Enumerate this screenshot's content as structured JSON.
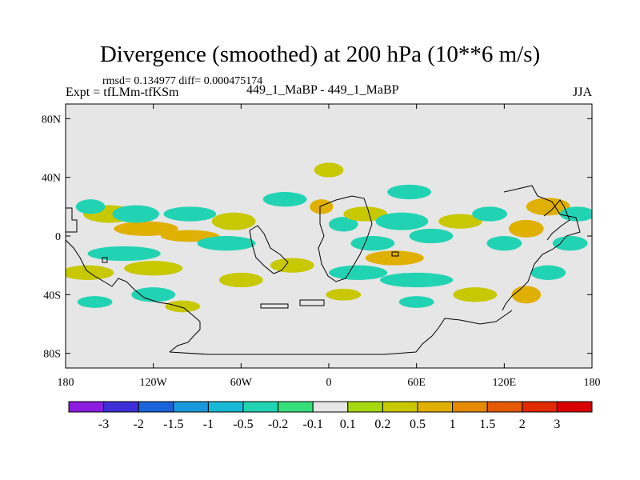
{
  "chart_data": {
    "type": "heatmap",
    "title": "Divergence (smoothed) at 200 hPa (10**6 m/s)",
    "stats_text": "rmsd= 0.134977 diff= 0.000475174",
    "left_label": "Expt = tfLMm-tfKSm",
    "center_label": "449_1_MaBP - 449_1_MaBP",
    "right_label": "JJA",
    "x_range": [
      -180,
      180
    ],
    "y_range": [
      -90,
      90
    ],
    "x_ticks": [
      {
        "value": -180,
        "label": "180"
      },
      {
        "value": -120,
        "label": "120W"
      },
      {
        "value": -60,
        "label": "60W"
      },
      {
        "value": 0,
        "label": "0"
      },
      {
        "value": 60,
        "label": "60E"
      },
      {
        "value": 120,
        "label": "120E"
      },
      {
        "value": 180,
        "label": "180"
      }
    ],
    "y_ticks": [
      {
        "value": 80,
        "label": "80N"
      },
      {
        "value": 40,
        "label": "40N"
      },
      {
        "value": 0,
        "label": "0"
      },
      {
        "value": -40,
        "label": "40S"
      },
      {
        "value": -80,
        "label": "80S"
      }
    ],
    "levels": [
      "-3",
      "-2",
      "-1.5",
      "-1",
      "-0.5",
      "-0.2",
      "-0.1",
      "0.1",
      "0.2",
      "0.5",
      "1",
      "1.5",
      "2",
      "3"
    ],
    "colors": [
      "#8c1de0",
      "#3f2fd6",
      "#1b63d9",
      "#1a98dc",
      "#18b9d6",
      "#22d3b3",
      "#36df7a",
      "#e6e6e6",
      "#a6d80f",
      "#c8c800",
      "#e0b000",
      "#e68a00",
      "#e35a00",
      "#e02a00",
      "#d80000"
    ],
    "background_color": "#e6e6e6",
    "anomalies": [
      {
        "lon": -150,
        "lat": 15,
        "dlon": 18,
        "dlat": 6,
        "value": 0.4
      },
      {
        "lon": -125,
        "lat": 5,
        "dlon": 22,
        "dlat": 5,
        "value": 0.5
      },
      {
        "lon": -95,
        "lat": 0,
        "dlon": 20,
        "dlat": 4,
        "value": 0.6
      },
      {
        "lon": -65,
        "lat": 10,
        "dlon": 15,
        "dlat": 6,
        "value": 0.4
      },
      {
        "lon": -163,
        "lat": 20,
        "dlon": 10,
        "dlat": 5,
        "value": -0.3
      },
      {
        "lon": -132,
        "lat": 15,
        "dlon": 16,
        "dlat": 6,
        "value": -0.4
      },
      {
        "lon": -95,
        "lat": 15,
        "dlon": 18,
        "dlat": 5,
        "value": -0.3
      },
      {
        "lon": -140,
        "lat": -12,
        "dlon": 25,
        "dlat": 5,
        "value": -0.4
      },
      {
        "lon": -70,
        "lat": -5,
        "dlon": 20,
        "dlat": 5,
        "value": -0.4
      },
      {
        "lon": -165,
        "lat": -25,
        "dlon": 18,
        "dlat": 5,
        "value": 0.4
      },
      {
        "lon": -120,
        "lat": -22,
        "dlon": 20,
        "dlat": 5,
        "value": 0.4
      },
      {
        "lon": -60,
        "lat": -30,
        "dlon": 15,
        "dlat": 5,
        "value": 0.4
      },
      {
        "lon": -160,
        "lat": -45,
        "dlon": 12,
        "dlat": 4,
        "value": -0.3
      },
      {
        "lon": -120,
        "lat": -40,
        "dlon": 15,
        "dlat": 5,
        "value": -0.3
      },
      {
        "lon": -100,
        "lat": -48,
        "dlon": 12,
        "dlat": 4,
        "value": 0.3
      },
      {
        "lon": -30,
        "lat": 25,
        "dlon": 15,
        "dlat": 5,
        "value": -0.3
      },
      {
        "lon": 0,
        "lat": 45,
        "dlon": 10,
        "dlat": 5,
        "value": 0.3
      },
      {
        "lon": -5,
        "lat": 20,
        "dlon": 8,
        "dlat": 5,
        "value": 0.5
      },
      {
        "lon": 10,
        "lat": 8,
        "dlon": 10,
        "dlat": 5,
        "value": -0.3
      },
      {
        "lon": 25,
        "lat": 15,
        "dlon": 15,
        "dlat": 5,
        "value": 0.4
      },
      {
        "lon": 50,
        "lat": 10,
        "dlon": 18,
        "dlat": 6,
        "value": -0.4
      },
      {
        "lon": 55,
        "lat": 30,
        "dlon": 15,
        "dlat": 5,
        "value": -0.4
      },
      {
        "lon": 30,
        "lat": -5,
        "dlon": 15,
        "dlat": 5,
        "value": -0.4
      },
      {
        "lon": 70,
        "lat": 0,
        "dlon": 15,
        "dlat": 5,
        "value": -0.3
      },
      {
        "lon": 45,
        "lat": -15,
        "dlon": 20,
        "dlat": 5,
        "value": 0.5
      },
      {
        "lon": 20,
        "lat": -25,
        "dlon": 20,
        "dlat": 5,
        "value": -0.4
      },
      {
        "lon": 60,
        "lat": -30,
        "dlon": 25,
        "dlat": 5,
        "value": -0.3
      },
      {
        "lon": -25,
        "lat": -20,
        "dlon": 15,
        "dlat": 5,
        "value": 0.4
      },
      {
        "lon": 10,
        "lat": -40,
        "dlon": 12,
        "dlat": 4,
        "value": 0.3
      },
      {
        "lon": 90,
        "lat": 10,
        "dlon": 15,
        "dlat": 5,
        "value": 0.4
      },
      {
        "lon": 110,
        "lat": 15,
        "dlon": 12,
        "dlat": 5,
        "value": -0.4
      },
      {
        "lon": 120,
        "lat": -5,
        "dlon": 12,
        "dlat": 5,
        "value": -0.4
      },
      {
        "lon": 135,
        "lat": 5,
        "dlon": 12,
        "dlat": 6,
        "value": 0.5
      },
      {
        "lon": 150,
        "lat": 20,
        "dlon": 15,
        "dlat": 6,
        "value": 0.6
      },
      {
        "lon": 170,
        "lat": 15,
        "dlon": 12,
        "dlat": 5,
        "value": -0.3
      },
      {
        "lon": 165,
        "lat": -5,
        "dlon": 12,
        "dlat": 5,
        "value": -0.4
      },
      {
        "lon": 150,
        "lat": -25,
        "dlon": 12,
        "dlat": 5,
        "value": -0.4
      },
      {
        "lon": 135,
        "lat": -40,
        "dlon": 10,
        "dlat": 6,
        "value": 0.5
      },
      {
        "lon": 100,
        "lat": -40,
        "dlon": 15,
        "dlat": 5,
        "value": 0.3
      },
      {
        "lon": 60,
        "lat": -45,
        "dlon": 12,
        "dlat": 4,
        "value": -0.3
      }
    ]
  }
}
